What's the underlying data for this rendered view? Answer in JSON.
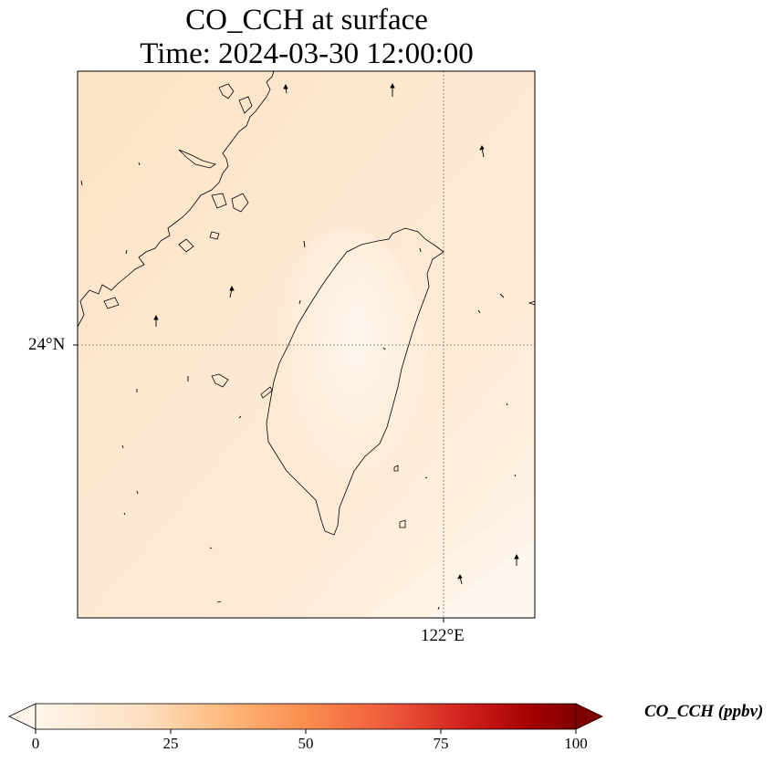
{
  "title": {
    "line1": "CO_CCH at surface",
    "line2": "Time: 2024-03-30 12:00:00"
  },
  "map": {
    "lat_label": "24°N",
    "lon_label": "122°E",
    "field_colors": [
      "#fdebd3",
      "#fde2c2",
      "#fef4e8"
    ],
    "coastline_color": "#000000",
    "gridline_style": "dotted"
  },
  "colorbar": {
    "label": "CO_CCH (ppbv)",
    "ticks": [
      "0",
      "25",
      "50",
      "75",
      "100"
    ],
    "min": 0,
    "max": 100,
    "extend": "both",
    "colormap": [
      "#fff5eb",
      "#fdd9b3",
      "#fdae6b",
      "#f16913",
      "#d94801",
      "#a50f15",
      "#7f0000"
    ]
  }
}
